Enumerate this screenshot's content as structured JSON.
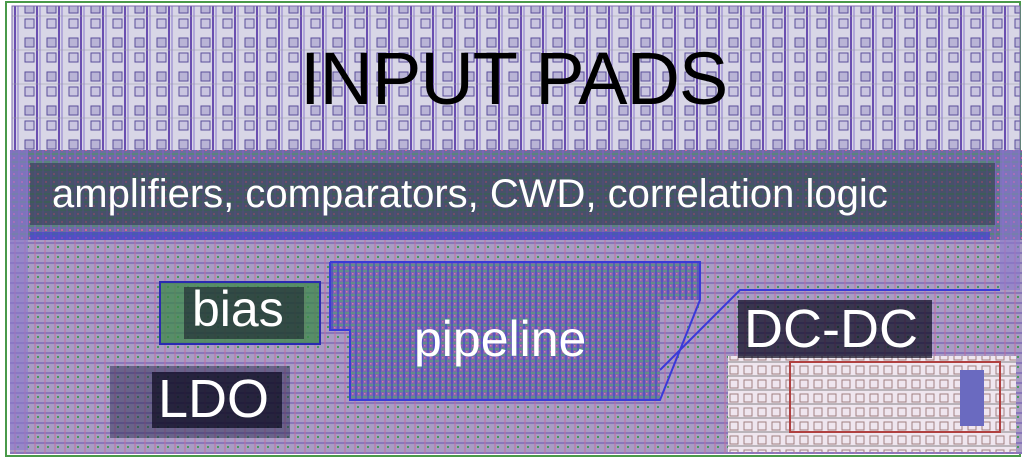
{
  "blocks": {
    "input_pads": "INPUT PADS",
    "front_end": "amplifiers, comparators, CWD, correlation logic",
    "bias": "bias",
    "pipeline": "pipeline",
    "dcdc": "DC-DC",
    "ldo": "LDO"
  },
  "colors": {
    "background": "#ffffff",
    "metal_purple": "#6a4fb0",
    "metal_blue": "#3a3ad8",
    "metal_green": "#3c9a3c",
    "pad_gray": "#9a9aa6",
    "label_text": "#ffffff",
    "pads_label_text": "#000000"
  }
}
